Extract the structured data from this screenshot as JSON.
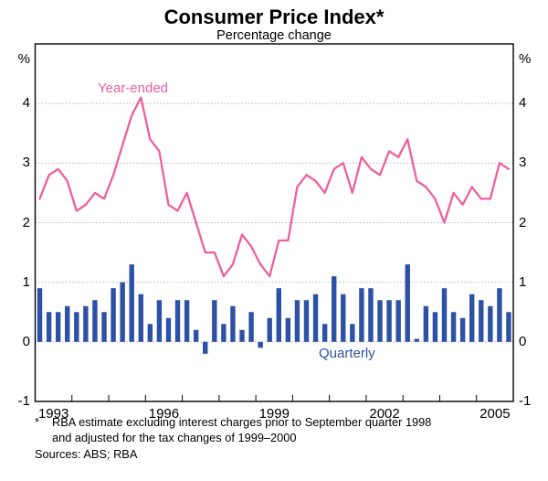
{
  "header": {
    "title": "Consumer Price Index*",
    "subtitle": "Percentage change"
  },
  "axes": {
    "unit_left": "%",
    "unit_right": "%",
    "y_tick_labels": [
      "-1",
      "0",
      "1",
      "2",
      "3",
      "4"
    ],
    "x_tick_labels": [
      "1993",
      "1996",
      "1999",
      "2002",
      "2005"
    ]
  },
  "annotations": {
    "line_label": "Year-ended",
    "bar_label": "Quarterly"
  },
  "footnotes": {
    "marker": "*",
    "line1": "RBA estimate excluding interest charges prior to September quarter 1998",
    "line2": "and adjusted for the tax changes of 1999–2000",
    "sources": "Sources: ABS; RBA"
  },
  "colors": {
    "line": "#ee5f9e",
    "bars": "#2c51a5",
    "grid": "#b5b5b5",
    "axis": "#000000",
    "text": "#000000"
  },
  "chart_data": {
    "type": "bar+line",
    "title": "Consumer Price Index*",
    "subtitle": "Percentage change",
    "ylabel": "%",
    "ylim": [
      -1,
      5
    ],
    "y_ticks": [
      -1,
      0,
      1,
      2,
      3,
      4
    ],
    "gridlines_at": [
      0,
      1,
      2,
      3,
      4
    ],
    "x_range_years": [
      1993,
      2006
    ],
    "x_tick_years": [
      1993,
      1996,
      1999,
      2002,
      2005
    ],
    "legend_position": "inline-annotations",
    "grid": "dotted-horizontal",
    "quarters": [
      "1993Q1",
      "1993Q2",
      "1993Q3",
      "1993Q4",
      "1994Q1",
      "1994Q2",
      "1994Q3",
      "1994Q4",
      "1995Q1",
      "1995Q2",
      "1995Q3",
      "1995Q4",
      "1996Q1",
      "1996Q2",
      "1996Q3",
      "1996Q4",
      "1997Q1",
      "1997Q2",
      "1997Q3",
      "1997Q4",
      "1998Q1",
      "1998Q2",
      "1998Q3",
      "1998Q4",
      "1999Q1",
      "1999Q2",
      "1999Q3",
      "1999Q4",
      "2000Q1",
      "2000Q2",
      "2000Q3",
      "2000Q4",
      "2001Q1",
      "2001Q2",
      "2001Q3",
      "2001Q4",
      "2002Q1",
      "2002Q2",
      "2002Q3",
      "2002Q4",
      "2003Q1",
      "2003Q2",
      "2003Q3",
      "2003Q4",
      "2004Q1",
      "2004Q2",
      "2004Q3",
      "2004Q4",
      "2005Q1",
      "2005Q2",
      "2005Q3",
      "2005Q4"
    ],
    "series": [
      {
        "name": "Year-ended",
        "type": "line",
        "values": [
          2.4,
          2.8,
          2.9,
          2.7,
          2.2,
          2.3,
          2.5,
          2.4,
          2.8,
          3.3,
          3.8,
          4.1,
          3.4,
          3.2,
          2.3,
          2.2,
          2.5,
          2.0,
          1.5,
          1.5,
          1.1,
          1.3,
          1.8,
          1.6,
          1.3,
          1.1,
          1.7,
          1.7,
          2.6,
          2.8,
          2.7,
          2.5,
          2.9,
          3.0,
          2.5,
          3.1,
          2.9,
          2.8,
          3.2,
          3.1,
          3.4,
          2.7,
          2.6,
          2.4,
          2.0,
          2.5,
          2.3,
          2.6,
          2.4,
          2.4,
          3.0,
          2.9
        ]
      },
      {
        "name": "Quarterly",
        "type": "bar",
        "values": [
          0.9,
          0.5,
          0.5,
          0.6,
          0.5,
          0.6,
          0.7,
          0.5,
          0.9,
          1.0,
          1.3,
          0.8,
          0.3,
          0.7,
          0.4,
          0.7,
          0.7,
          0.2,
          -0.2,
          0.7,
          0.3,
          0.6,
          0.2,
          0.5,
          -0.1,
          0.4,
          0.9,
          0.4,
          0.7,
          0.7,
          0.8,
          0.3,
          1.1,
          0.8,
          0.3,
          0.9,
          0.9,
          0.7,
          0.7,
          0.7,
          1.3,
          0.05,
          0.6,
          0.5,
          0.9,
          0.5,
          0.4,
          0.8,
          0.7,
          0.6,
          0.9,
          0.5
        ]
      }
    ]
  }
}
